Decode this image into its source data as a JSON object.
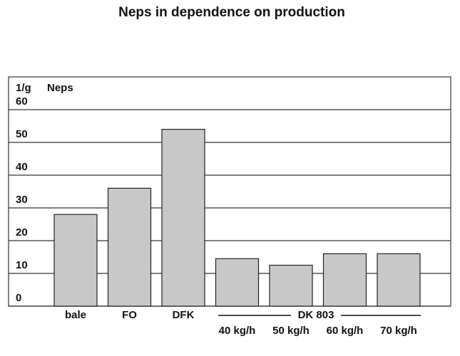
{
  "chart_data": {
    "type": "bar",
    "title": "Neps in dependence on production",
    "y_unit_label": "1/g",
    "y_axis_label": "Neps",
    "categories": [
      "bale",
      "FO",
      "DFK",
      "40 kg/h",
      "50 kg/h",
      "60 kg/h",
      "70 kg/h"
    ],
    "values": [
      28,
      36,
      54,
      14.5,
      12.5,
      16,
      16
    ],
    "group_label": "DK 803",
    "color": "#c8c8c8",
    "ylim": [
      0,
      70
    ],
    "yticks": [
      0,
      10,
      20,
      30,
      40,
      50,
      60
    ],
    "grid": true
  }
}
